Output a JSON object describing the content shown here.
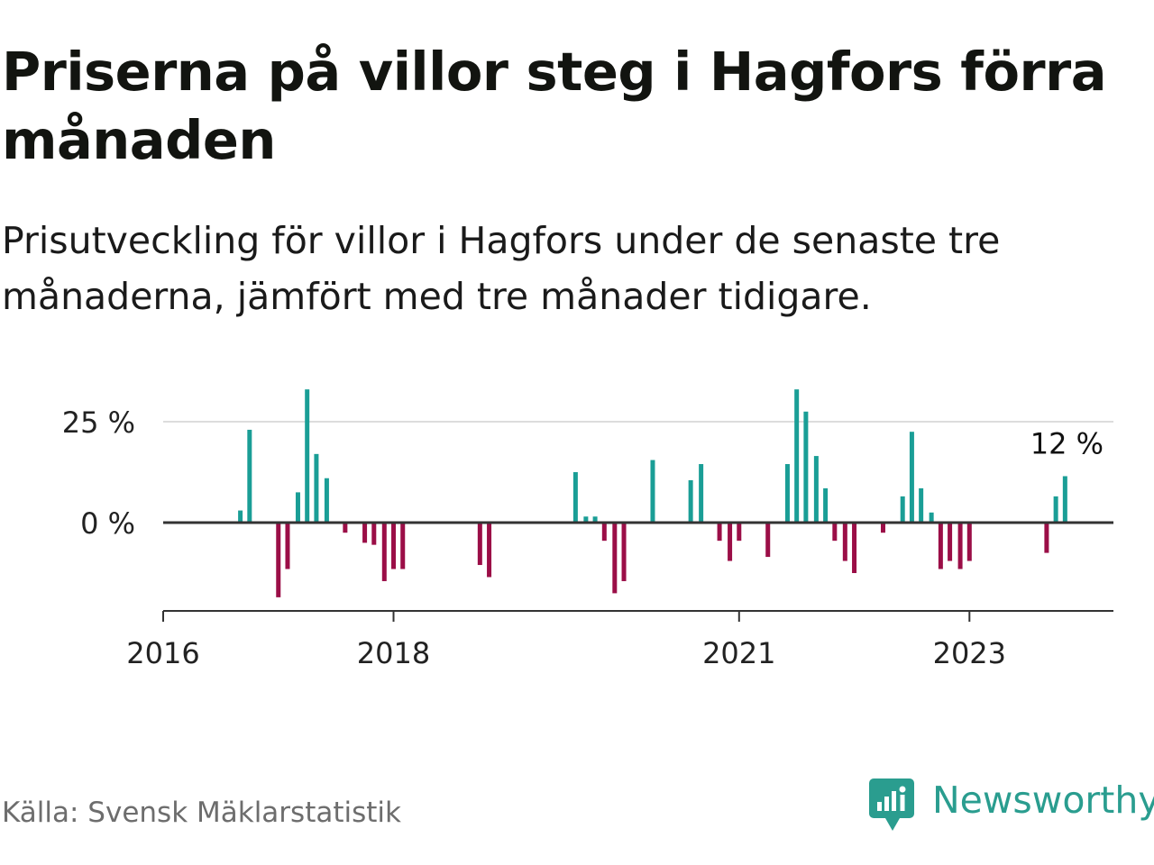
{
  "title": "Priserna på villor steg i Hagfors förra månaden",
  "subtitle": "Prisutveckling för villor i Hagfors under de senaste tre månaderna, jämfört med tre månader tidigare.",
  "source": "Källa: Svensk Mäklarstatistik",
  "brand": {
    "name": "Newsworthy",
    "icon": "newsworthy-logo-icon"
  },
  "colors": {
    "positive": "#1a9e96",
    "negative": "#9b0e47",
    "grid": "#dddddd",
    "axis": "#333333",
    "brand": "#2a9d8f"
  },
  "chart_data": {
    "type": "bar",
    "title": "Priserna på villor steg i Hagfors förra månaden",
    "xlabel": "",
    "ylabel": "",
    "ylim": [
      -22,
      35
    ],
    "grid": true,
    "yticks": [
      {
        "value": 0,
        "label": "0 %"
      },
      {
        "value": 25,
        "label": "25 %"
      }
    ],
    "xticks": [
      {
        "value": 2016.0,
        "label": "2016"
      },
      {
        "value": 2018.0,
        "label": "2018"
      },
      {
        "value": 2021.0,
        "label": "2021"
      },
      {
        "value": 2023.0,
        "label": "2023"
      }
    ],
    "xlim": [
      2016.0,
      2024.25
    ],
    "annotation": {
      "x": 2023.83,
      "y": 11.5,
      "label": "12 %"
    },
    "points": [
      {
        "x": 2016.67,
        "y": 3
      },
      {
        "x": 2016.75,
        "y": 23
      },
      {
        "x": 2017.0,
        "y": -18.5
      },
      {
        "x": 2017.08,
        "y": -11.5
      },
      {
        "x": 2017.17,
        "y": 7.5
      },
      {
        "x": 2017.25,
        "y": 33
      },
      {
        "x": 2017.33,
        "y": 17
      },
      {
        "x": 2017.42,
        "y": 11
      },
      {
        "x": 2017.58,
        "y": -2.5
      },
      {
        "x": 2017.75,
        "y": -5
      },
      {
        "x": 2017.83,
        "y": -5.5
      },
      {
        "x": 2017.92,
        "y": -14.5
      },
      {
        "x": 2018.0,
        "y": -11.5
      },
      {
        "x": 2018.08,
        "y": -11.5
      },
      {
        "x": 2018.75,
        "y": -10.5
      },
      {
        "x": 2018.83,
        "y": -13.5
      },
      {
        "x": 2019.58,
        "y": 12.5
      },
      {
        "x": 2019.67,
        "y": 1.5
      },
      {
        "x": 2019.75,
        "y": 1.5
      },
      {
        "x": 2019.83,
        "y": -4.5
      },
      {
        "x": 2019.92,
        "y": -17.5
      },
      {
        "x": 2020.0,
        "y": -14.5
      },
      {
        "x": 2020.25,
        "y": 15.5
      },
      {
        "x": 2020.58,
        "y": 10.5
      },
      {
        "x": 2020.67,
        "y": 14.5
      },
      {
        "x": 2020.83,
        "y": -4.5
      },
      {
        "x": 2020.92,
        "y": -9.5
      },
      {
        "x": 2021.0,
        "y": -4.5
      },
      {
        "x": 2021.25,
        "y": -8.5
      },
      {
        "x": 2021.42,
        "y": 14.5
      },
      {
        "x": 2021.5,
        "y": 33
      },
      {
        "x": 2021.58,
        "y": 27.5
      },
      {
        "x": 2021.67,
        "y": 16.5
      },
      {
        "x": 2021.75,
        "y": 8.5
      },
      {
        "x": 2021.83,
        "y": -4.5
      },
      {
        "x": 2021.92,
        "y": -9.5
      },
      {
        "x": 2022.0,
        "y": -12.5
      },
      {
        "x": 2022.25,
        "y": -2.5
      },
      {
        "x": 2022.42,
        "y": 6.5
      },
      {
        "x": 2022.5,
        "y": 22.5
      },
      {
        "x": 2022.58,
        "y": 8.5
      },
      {
        "x": 2022.67,
        "y": 2.5
      },
      {
        "x": 2022.75,
        "y": -11.5
      },
      {
        "x": 2022.83,
        "y": -9.5
      },
      {
        "x": 2022.92,
        "y": -11.5
      },
      {
        "x": 2023.0,
        "y": -9.5
      },
      {
        "x": 2023.67,
        "y": -7.5
      },
      {
        "x": 2023.75,
        "y": 6.5
      },
      {
        "x": 2023.83,
        "y": 11.5
      }
    ]
  }
}
